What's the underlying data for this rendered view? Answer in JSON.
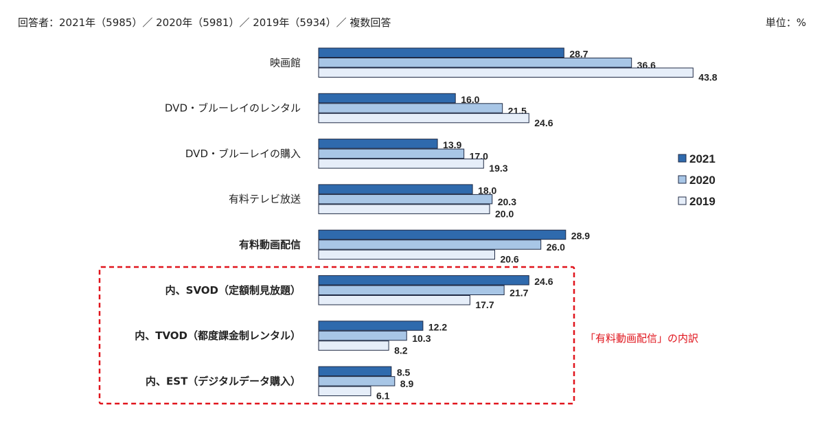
{
  "header": {
    "respondents": "回答者：2021年（5985）／ 2020年（5981）／ 2019年（5934）／ 複数回答",
    "unit": "単位：%"
  },
  "colors": {
    "2021": "#2f6aad",
    "2020": "#a8c6e6",
    "2019": "#e6eef9",
    "bar_border": "#1f2a44",
    "highlight_box": "#e0141c"
  },
  "annotation": "「有料動画配信」の内訳",
  "chart_data": {
    "type": "bar",
    "orientation": "horizontal",
    "categories": [
      "映画館",
      "DVD・ブルーレイのレンタル",
      "DVD・ブルーレイの購入",
      "有料テレビ放送",
      "有料動画配信",
      "内、SVOD（定額制見放題）",
      "内、TVOD（都度課金制レンタル）",
      "内、EST（デジタルデータ購入）"
    ],
    "bold_categories": [
      "有料動画配信",
      "内、SVOD（定額制見放題）",
      "内、TVOD（都度課金制レンタル）",
      "内、EST（デジタルデータ購入）"
    ],
    "series": [
      {
        "name": "2021",
        "values": [
          28.7,
          16.0,
          13.9,
          18.0,
          28.9,
          24.6,
          12.2,
          8.5
        ]
      },
      {
        "name": "2020",
        "values": [
          36.6,
          21.5,
          17.0,
          20.3,
          26.0,
          21.7,
          10.3,
          8.9
        ]
      },
      {
        "name": "2019",
        "values": [
          43.8,
          24.6,
          19.3,
          20.0,
          20.6,
          17.7,
          8.2,
          6.1
        ]
      }
    ],
    "value_labels": [
      [
        "28.7",
        "16.0",
        "13.9",
        "18.0",
        "28.9",
        "24.6",
        "12.2",
        "8.5"
      ],
      [
        "36.6",
        "21.5",
        "17.0",
        "20.3",
        "26.0",
        "21.7",
        "10.3",
        "8.9"
      ],
      [
        "43.8",
        "24.6",
        "19.3",
        "20.0",
        "20.6",
        "17.7",
        "8.2",
        "6.1"
      ]
    ],
    "xlim": [
      0,
      45
    ],
    "grid": false,
    "axes_visible": false,
    "legend_placement": "right"
  }
}
